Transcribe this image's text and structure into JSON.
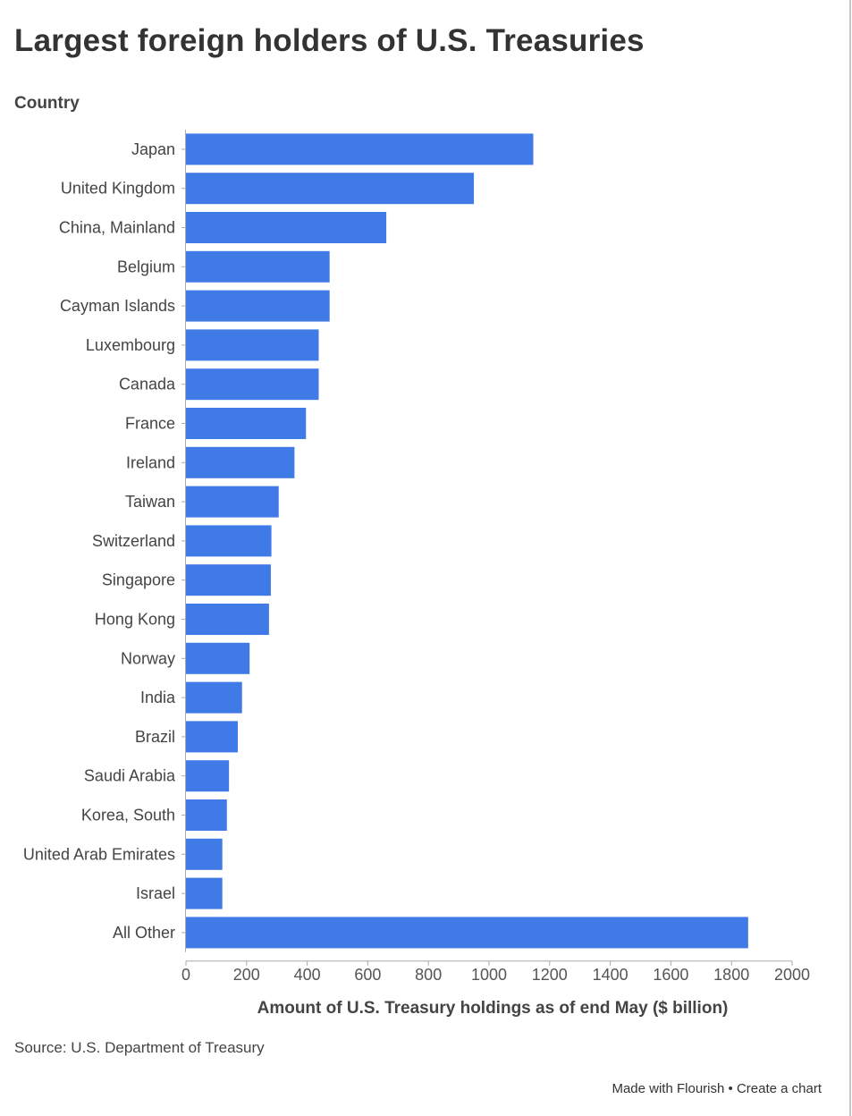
{
  "title": "Largest foreign holders of U.S. Treasuries",
  "y_axis_title": "Country",
  "source": "Source: U.S. Department of Treasury",
  "footer": {
    "made_with": "Made with Flourish",
    "separator": "•",
    "create": "Create a chart"
  },
  "colors": {
    "bar": "#3f7ae6",
    "axis": "#aaaaaa",
    "text": "#333333"
  },
  "chart_data": {
    "type": "bar",
    "orientation": "horizontal",
    "title": "Largest foreign holders of U.S. Treasuries",
    "ylabel": "Country",
    "xlabel": "Amount of U.S. Treasury holdings as of end May ($ billion)",
    "xlim": [
      0,
      2000
    ],
    "x_ticks": [
      0,
      200,
      400,
      600,
      800,
      1000,
      1200,
      1400,
      1600,
      1800,
      2000
    ],
    "categories": [
      "Japan",
      "United Kingdom",
      "China, Mainland",
      "Belgium",
      "Cayman Islands",
      "Luxembourg",
      "Canada",
      "France",
      "Ireland",
      "Taiwan",
      "Switzerland",
      "Singapore",
      "Hong Kong",
      "Norway",
      "India",
      "Brazil",
      "Saudi Arabia",
      "Korea, South",
      "United Arab Emirates",
      "Israel",
      "All Other"
    ],
    "values": [
      1146,
      950,
      661,
      474,
      474,
      438,
      438,
      396,
      358,
      306,
      282,
      280,
      274,
      210,
      185,
      171,
      142,
      135,
      120,
      120,
      1855
    ],
    "grid": false,
    "legend": "none"
  }
}
